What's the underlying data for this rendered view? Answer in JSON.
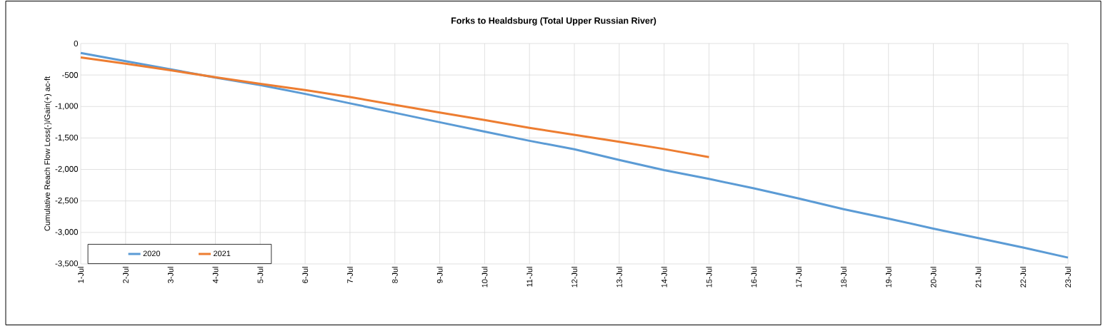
{
  "chart_data": {
    "type": "line",
    "title": "Forks to Healdsburg (Total Upper Russian River)",
    "ylabel": "Cumulative Reach Flow Loss(-)/Gain(+) ac-ft",
    "categories": [
      "1-Jul",
      "2-Jul",
      "3-Jul",
      "4-Jul",
      "5-Jul",
      "6-Jul",
      "7-Jul",
      "8-Jul",
      "9-Jul",
      "10-Jul",
      "11-Jul",
      "12-Jul",
      "13-Jul",
      "14-Jul",
      "15-Jul",
      "16-Jul",
      "17-Jul",
      "18-Jul",
      "19-Jul",
      "20-Jul",
      "21-Jul",
      "22-Jul",
      "23-Jul"
    ],
    "series": [
      {
        "name": "2020",
        "color": "#5b9bd5",
        "values": [
          -150,
          -280,
          -410,
          -540,
          -660,
          -800,
          -950,
          -1100,
          -1250,
          -1400,
          -1545,
          -1680,
          -1850,
          -2010,
          -2150,
          -2300,
          -2460,
          -2630,
          -2780,
          -2940,
          -3090,
          -3240,
          -3400
        ]
      },
      {
        "name": "2021",
        "color": "#ed7d31",
        "values": [
          -220,
          -320,
          -425,
          -535,
          -640,
          -740,
          -850,
          -975,
          -1095,
          -1215,
          -1340,
          -1450,
          -1560,
          -1675,
          -1805,
          null,
          null,
          null,
          null,
          null,
          null,
          null,
          null
        ]
      }
    ],
    "ylim": [
      -3500,
      0
    ],
    "yticks": [
      {
        "value": -3500,
        "label": "-3,500"
      },
      {
        "value": -3000,
        "label": "-3,000"
      },
      {
        "value": -2500,
        "label": "-2,500"
      },
      {
        "value": -2000,
        "label": "-2,000"
      },
      {
        "value": -1500,
        "label": "-1,500"
      },
      {
        "value": -1000,
        "label": "-1,000"
      },
      {
        "value": -500,
        "label": "-500"
      },
      0
    ],
    "grid": true,
    "legend": "bottom left",
    "marker": "none",
    "line_style": "solid"
  }
}
